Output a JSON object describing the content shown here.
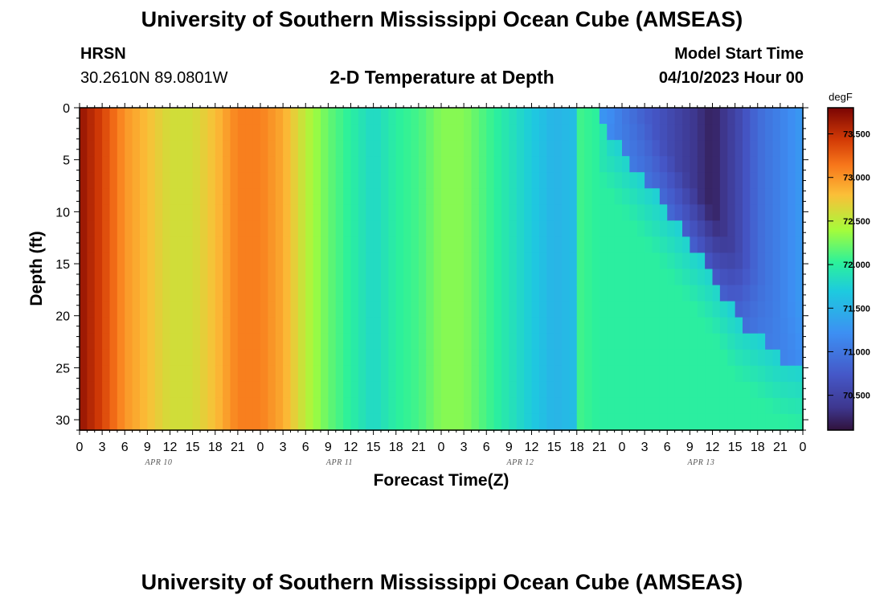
{
  "header": {
    "title": "University of Southern Mississippi Ocean Cube (AMSEAS)",
    "station": "HRSN",
    "coordinates": "30.2610N  89.0801W",
    "subtitle": "2-D Temperature at Depth",
    "model_start_label": "Model Start Time",
    "model_start_value": "04/10/2023 Hour 00"
  },
  "footer": {
    "title": "University of Southern Mississippi Ocean Cube (AMSEAS)"
  },
  "chart_data": {
    "type": "heatmap",
    "title": "2-D Temperature at Depth",
    "xlabel": "Forecast Time(Z)",
    "ylabel": "Depth (ft)",
    "x_tick_labels": [
      "0",
      "3",
      "6",
      "9",
      "12",
      "15",
      "18",
      "21",
      "0",
      "3",
      "6",
      "9",
      "12",
      "15",
      "18",
      "21",
      "0",
      "3",
      "6",
      "9",
      "12",
      "15",
      "18",
      "21",
      "0",
      "3",
      "6",
      "9",
      "12",
      "15",
      "18",
      "21",
      "0"
    ],
    "day_labels": [
      "APR 10",
      "APR 11",
      "APR 12",
      "APR 13"
    ],
    "x_range_hours": [
      0,
      96
    ],
    "y_ticks": [
      0,
      5,
      10,
      15,
      20,
      25,
      30
    ],
    "y_range": [
      0,
      31
    ],
    "y_inverted": true,
    "colorbar": {
      "unit": "degF",
      "ticks": [
        73.5,
        73.0,
        72.5,
        72.0,
        71.5,
        71.0,
        70.5
      ],
      "tick_labels": [
        "73.500",
        "73.000",
        "72.500",
        "72.000",
        "71.500",
        "71.000",
        "70.500"
      ],
      "range": [
        70.1,
        73.8
      ]
    },
    "surface_temperature_by_hour": [
      [
        0,
        73.7
      ],
      [
        3,
        73.4
      ],
      [
        6,
        73.0
      ],
      [
        9,
        72.8
      ],
      [
        12,
        72.6
      ],
      [
        15,
        72.6
      ],
      [
        18,
        72.8
      ],
      [
        21,
        73.1
      ],
      [
        24,
        73.1
      ],
      [
        27,
        72.9
      ],
      [
        30,
        72.5
      ],
      [
        33,
        72.2
      ],
      [
        36,
        72.0
      ],
      [
        39,
        71.8
      ],
      [
        42,
        72.0
      ],
      [
        45,
        72.1
      ],
      [
        48,
        72.3
      ],
      [
        51,
        72.3
      ],
      [
        54,
        72.1
      ],
      [
        57,
        71.9
      ],
      [
        60,
        71.7
      ],
      [
        63,
        71.5
      ],
      [
        66,
        71.6
      ],
      [
        69,
        71.5
      ],
      [
        72,
        71.0
      ],
      [
        75,
        70.8
      ],
      [
        78,
        70.6
      ],
      [
        81,
        70.4
      ],
      [
        84,
        70.2
      ],
      [
        87,
        70.5
      ],
      [
        90,
        70.9
      ],
      [
        93,
        71.1
      ],
      [
        96,
        71.3
      ]
    ],
    "cold_layer_boundary_depth_by_hour": [
      [
        68,
        0
      ],
      [
        72,
        4
      ],
      [
        75,
        7
      ],
      [
        78,
        10
      ],
      [
        81,
        13
      ],
      [
        84,
        16
      ],
      [
        87,
        20
      ],
      [
        90,
        22
      ],
      [
        93,
        24
      ],
      [
        96,
        25
      ]
    ]
  }
}
